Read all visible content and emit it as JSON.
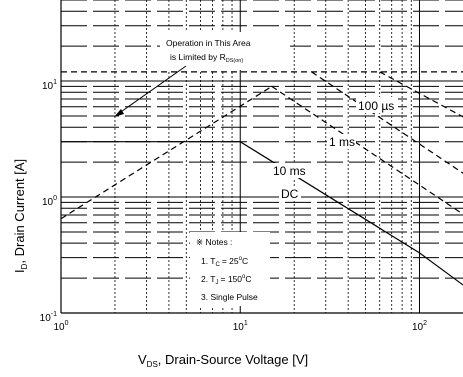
{
  "chart_data": {
    "type": "line",
    "title": "",
    "xlabel": {
      "main": "V",
      "sub": "DS",
      "rest": ", Drain-Source Voltage [V]"
    },
    "ylabel": {
      "main": "I",
      "sub": "D",
      "rest": ", Drain Current [A]"
    },
    "x_scale": "log",
    "y_scale": "log",
    "xlim": [
      1,
      300
    ],
    "ylim": [
      0.1,
      50
    ],
    "grid": true,
    "x_ticks": [
      {
        "value": 1,
        "base": "10",
        "exp": "0"
      },
      {
        "value": 10,
        "base": "10",
        "exp": "1"
      },
      {
        "value": 100,
        "base": "10",
        "exp": "2"
      }
    ],
    "y_ticks": [
      {
        "value": 0.1,
        "base": "10",
        "exp": "-1"
      },
      {
        "value": 1,
        "base": "10",
        "exp": "0"
      },
      {
        "value": 10,
        "base": "10",
        "exp": "1"
      }
    ],
    "series": [
      {
        "name": "DC",
        "style": "solid",
        "points": [
          [
            1,
            3
          ],
          [
            10,
            3
          ],
          [
            100,
            0.33
          ],
          [
            200,
            0.15
          ]
        ]
      },
      {
        "name": "10 ms",
        "style": "dash",
        "points": [
          [
            15,
            9
          ],
          [
            200,
            0.62
          ]
        ]
      },
      {
        "name": "1 ms",
        "style": "dash",
        "points": [
          [
            25,
            12
          ],
          [
            200,
            1.4
          ]
        ]
      },
      {
        "name": "100 µs",
        "style": "dash",
        "points": [
          [
            60,
            12
          ],
          [
            200,
            4.4
          ]
        ]
      },
      {
        "name": "",
        "style": "dash",
        "points": [
          [
            1,
            0.65
          ],
          [
            15,
            9
          ]
        ]
      },
      {
        "name": "",
        "style": "dash",
        "points": [
          [
            1,
            12
          ],
          [
            200,
            12
          ]
        ]
      },
      {
        "name": "",
        "style": "dash",
        "points": [
          [
            200,
            0.15
          ],
          [
            200,
            12
          ]
        ]
      }
    ],
    "annotations": {
      "rdson_line1": "Operation in This Area",
      "rdson_line2_prefix": "is Limited by R",
      "rdson_line2_sub": "DS(on)",
      "label_100us": "100 µs",
      "label_1ms": "1 ms",
      "label_10ms": "10 ms",
      "label_dc": "DC"
    },
    "notes": {
      "heading": "※ Notes :",
      "note1_prefix": "1. T",
      "note1_sub": "C",
      "note1_value": "= 25",
      "note1_sup": "o",
      "note1_unit": "C",
      "note2_prefix": "2. T",
      "note2_sub": "J",
      "note2_value": "= 150",
      "note2_sup": "o",
      "note2_unit": "C",
      "note3": "3. Single Pulse"
    }
  }
}
